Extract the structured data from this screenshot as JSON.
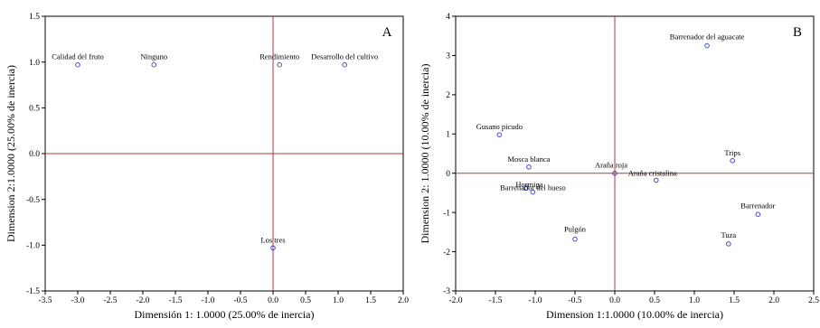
{
  "colors": {
    "reference_line": "#b03a3a",
    "marker": "#4a4acb",
    "frame": "#000000",
    "background": "#ffffff"
  },
  "chart_data": [
    {
      "type": "scatter",
      "panel_letter": "A",
      "xlabel": "Dimensión 1: 1.0000 (25.00% de inercia)",
      "ylabel": "Dimension 2:1.0000 (25.00% de inercia)",
      "xlim": [
        -3.5,
        2.0
      ],
      "ylim": [
        -1.5,
        1.5
      ],
      "xticks": [
        "-3.5",
        "-3.0",
        "-2.5",
        "-2.0",
        "-1.5",
        "-1.0",
        "-0.5",
        "0.0",
        "0.5",
        "1.0",
        "1.5",
        "2.0"
      ],
      "xtick_values": [
        -3.5,
        -3.0,
        -2.5,
        -2.0,
        -1.5,
        -1.0,
        -0.5,
        0.0,
        0.5,
        1.0,
        1.5,
        2.0
      ],
      "yticks": [
        "-1.5",
        "-1.0",
        "-0.5",
        "0.0",
        "0.5",
        "1.0",
        "1.5"
      ],
      "ytick_values": [
        -1.5,
        -1.0,
        -0.5,
        0.0,
        0.5,
        1.0,
        1.5
      ],
      "reference_lines": {
        "x": 0,
        "y": 0
      },
      "points": [
        {
          "label": "Calidad del fruto",
          "x": -3.0,
          "y": 0.97
        },
        {
          "label": "Ninguno",
          "x": -1.83,
          "y": 0.97
        },
        {
          "label": "Rendimiento",
          "x": 0.1,
          "y": 0.97
        },
        {
          "label": "Desarrollo del cultivo",
          "x": 1.1,
          "y": 0.97
        },
        {
          "label": "Los tres",
          "x": 0.0,
          "y": -1.03
        }
      ]
    },
    {
      "type": "scatter",
      "panel_letter": "B",
      "xlabel": "Dimension 1:1.0000 (10.00% de inercia)",
      "ylabel": "Dimension 2: 1.0000 (10.00% de inercia)",
      "xlim": [
        -2.0,
        2.5
      ],
      "ylim": [
        -3,
        4
      ],
      "xticks": [
        "-2.0",
        "-1.5",
        "-1.0",
        "-0.5",
        "0.0",
        "0.5",
        "1.0",
        "1.5",
        "2.0",
        "2.5"
      ],
      "xtick_values": [
        -2.0,
        -1.5,
        -1.0,
        -0.5,
        0.0,
        0.5,
        1.0,
        1.5,
        2.0,
        2.5
      ],
      "yticks": [
        "-3",
        "-2",
        "-1",
        "0",
        "1",
        "2",
        "3",
        "4"
      ],
      "ytick_values": [
        -3,
        -2,
        -1,
        0,
        1,
        2,
        3,
        4
      ],
      "reference_lines": {
        "x": 0,
        "y": 0
      },
      "points": [
        {
          "label": "Barrenador del aguacate",
          "x": 1.16,
          "y": 3.25
        },
        {
          "label": "Gusano picudo",
          "x": -1.45,
          "y": 0.98
        },
        {
          "label": "Trips",
          "x": 1.48,
          "y": 0.32
        },
        {
          "label": "Mosca blanca",
          "x": -1.08,
          "y": 0.16
        },
        {
          "label": "Araña roja",
          "x": 0.0,
          "y": 0.0
        },
        {
          "label": "Araña cristalina",
          "x": 0.52,
          "y": -0.18
        },
        {
          "label": "Hormiga",
          "x": -1.12,
          "y": -0.38
        },
        {
          "label": "Barrenador del hueso",
          "x": -1.03,
          "y": -0.48
        },
        {
          "label": "Barrenador",
          "x": 1.8,
          "y": -1.05
        },
        {
          "label": "Pulgón",
          "x": -0.5,
          "y": -1.68
        },
        {
          "label": "Tuza",
          "x": 1.43,
          "y": -1.8
        }
      ]
    }
  ]
}
